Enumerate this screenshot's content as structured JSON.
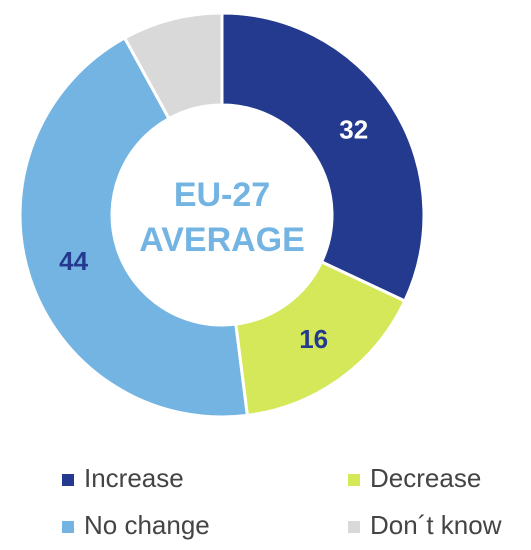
{
  "chart_data": {
    "type": "donut",
    "center_text": [
      "EU-27",
      "AVERAGE"
    ],
    "categories": [
      "Increase",
      "Decrease",
      "No change",
      "Don´t know"
    ],
    "values": [
      32,
      16,
      44,
      8
    ],
    "value_labels": [
      "32",
      "16",
      "44",
      null
    ],
    "colors": [
      "#233a8e",
      "#d4e85a",
      "#74b4e2",
      "#d9d9d9"
    ],
    "label_colors": [
      "#ffffff",
      "#233a8e",
      "#233a8e",
      null
    ]
  }
}
